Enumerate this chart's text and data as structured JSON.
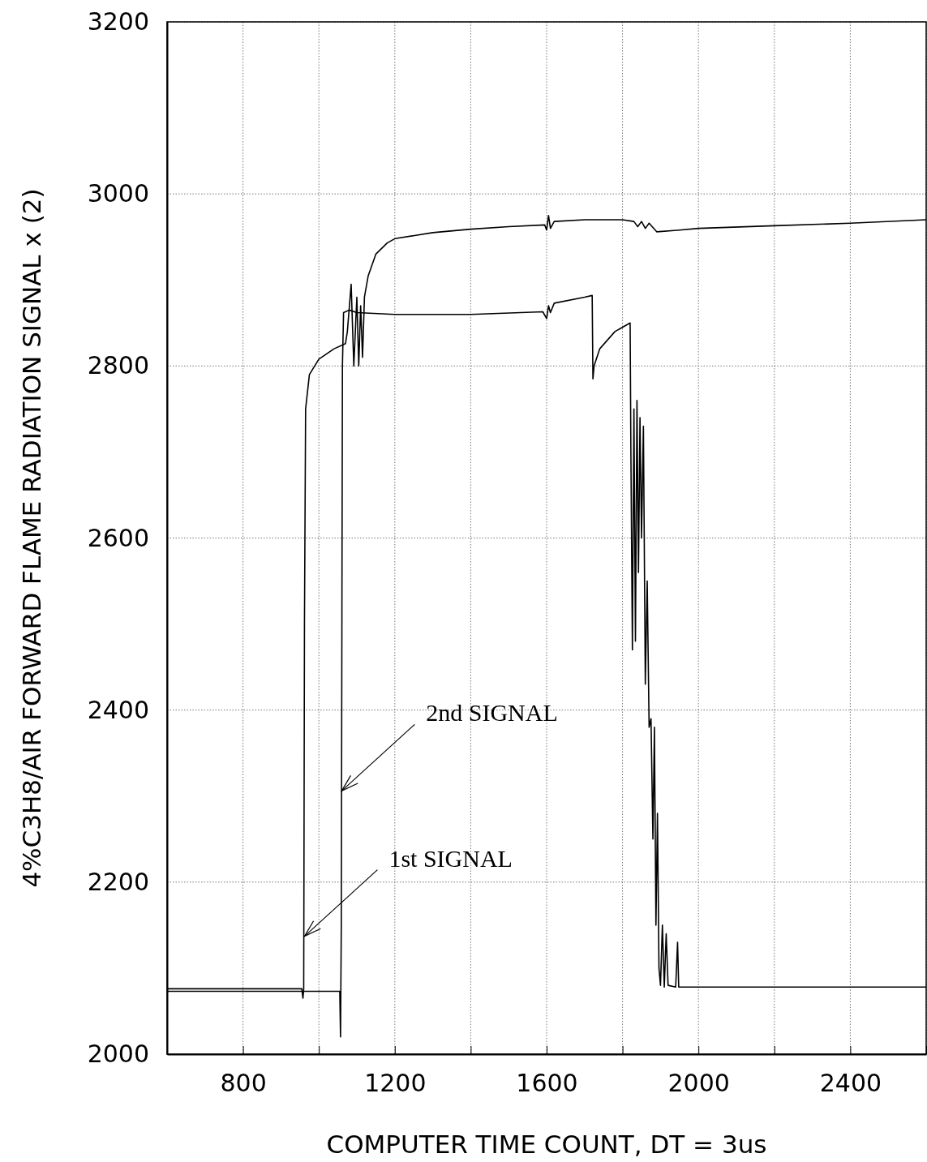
{
  "chart_data": {
    "type": "line",
    "xlabel": "COMPUTER TIME COUNT, DT = 3us",
    "ylabel": "4%C3H8/AIR FORWARD FLAME RADIATION SIGNAL x (2)",
    "xlim": [
      600,
      2600
    ],
    "xticks": [
      {
        "value": 600,
        "label": null
      },
      800,
      {
        "value": 1000,
        "label": null
      },
      1200,
      {
        "value": 1400,
        "label": null
      },
      1600,
      {
        "value": 1800,
        "label": null
      },
      2000,
      {
        "value": 2200,
        "label": null
      },
      2400,
      {
        "value": 2600,
        "label": null
      }
    ],
    "ylim": [
      2000,
      3200
    ],
    "yticks": [
      2000,
      2200,
      2400,
      2600,
      2800,
      3000,
      3200
    ],
    "grid": true,
    "line_style": "solid",
    "marker": "none",
    "series": [
      {
        "color": "#000000",
        "x": [
          600,
          955,
          958,
          960,
          962,
          965,
          975,
          1000,
          1040,
          1070,
          1075,
          1085,
          1092,
          1100,
          1105,
          1110,
          1115,
          1120,
          1130,
          1150,
          1180,
          1200,
          1300,
          1400,
          1500,
          1595,
          1600,
          1605,
          1610,
          1620,
          1700,
          1800,
          1830,
          1840,
          1850,
          1860,
          1870,
          1890,
          1950,
          2000,
          2200,
          2400,
          2600
        ],
        "values": [
          2076,
          2076,
          2065,
          2076,
          2500,
          2750,
          2790,
          2808,
          2820,
          2826,
          2840,
          2895,
          2800,
          2880,
          2800,
          2870,
          2810,
          2880,
          2905,
          2930,
          2943,
          2948,
          2955,
          2959,
          2962,
          2964,
          2958,
          2975,
          2960,
          2968,
          2970,
          2970,
          2968,
          2962,
          2968,
          2960,
          2966,
          2956,
          2958,
          2960,
          2963,
          2966,
          2970
        ]
      },
      {
        "color": "#000000",
        "x": [
          600,
          1055,
          1057,
          1059,
          1062,
          1065,
          1080,
          1100,
          1200,
          1400,
          1590,
          1600,
          1605,
          1610,
          1620,
          1700,
          1720,
          1722,
          1725,
          1740,
          1780,
          1820,
          1822,
          1826,
          1830,
          1834,
          1838,
          1842,
          1846,
          1850,
          1855,
          1860,
          1865,
          1870,
          1875,
          1880,
          1884,
          1888,
          1892,
          1896,
          1900,
          1905,
          1910,
          1915,
          1920,
          1940,
          1945,
          1948,
          2000,
          2600
        ],
        "values": [
          2073,
          2073,
          2020,
          2150,
          2800,
          2862,
          2865,
          2862,
          2860,
          2860,
          2863,
          2855,
          2870,
          2862,
          2873,
          2880,
          2882,
          2785,
          2800,
          2820,
          2840,
          2850,
          2700,
          2470,
          2750,
          2480,
          2760,
          2560,
          2740,
          2600,
          2730,
          2430,
          2550,
          2380,
          2390,
          2250,
          2380,
          2150,
          2280,
          2100,
          2080,
          2150,
          2078,
          2140,
          2080,
          2078,
          2130,
          2078,
          2078,
          2078
        ]
      }
    ],
    "annotations": [
      {
        "text": "1st SIGNAL",
        "x": 962,
        "y": 2137
      },
      {
        "text": "2nd SIGNAL",
        "x": 1060,
        "y": 2306
      }
    ]
  }
}
